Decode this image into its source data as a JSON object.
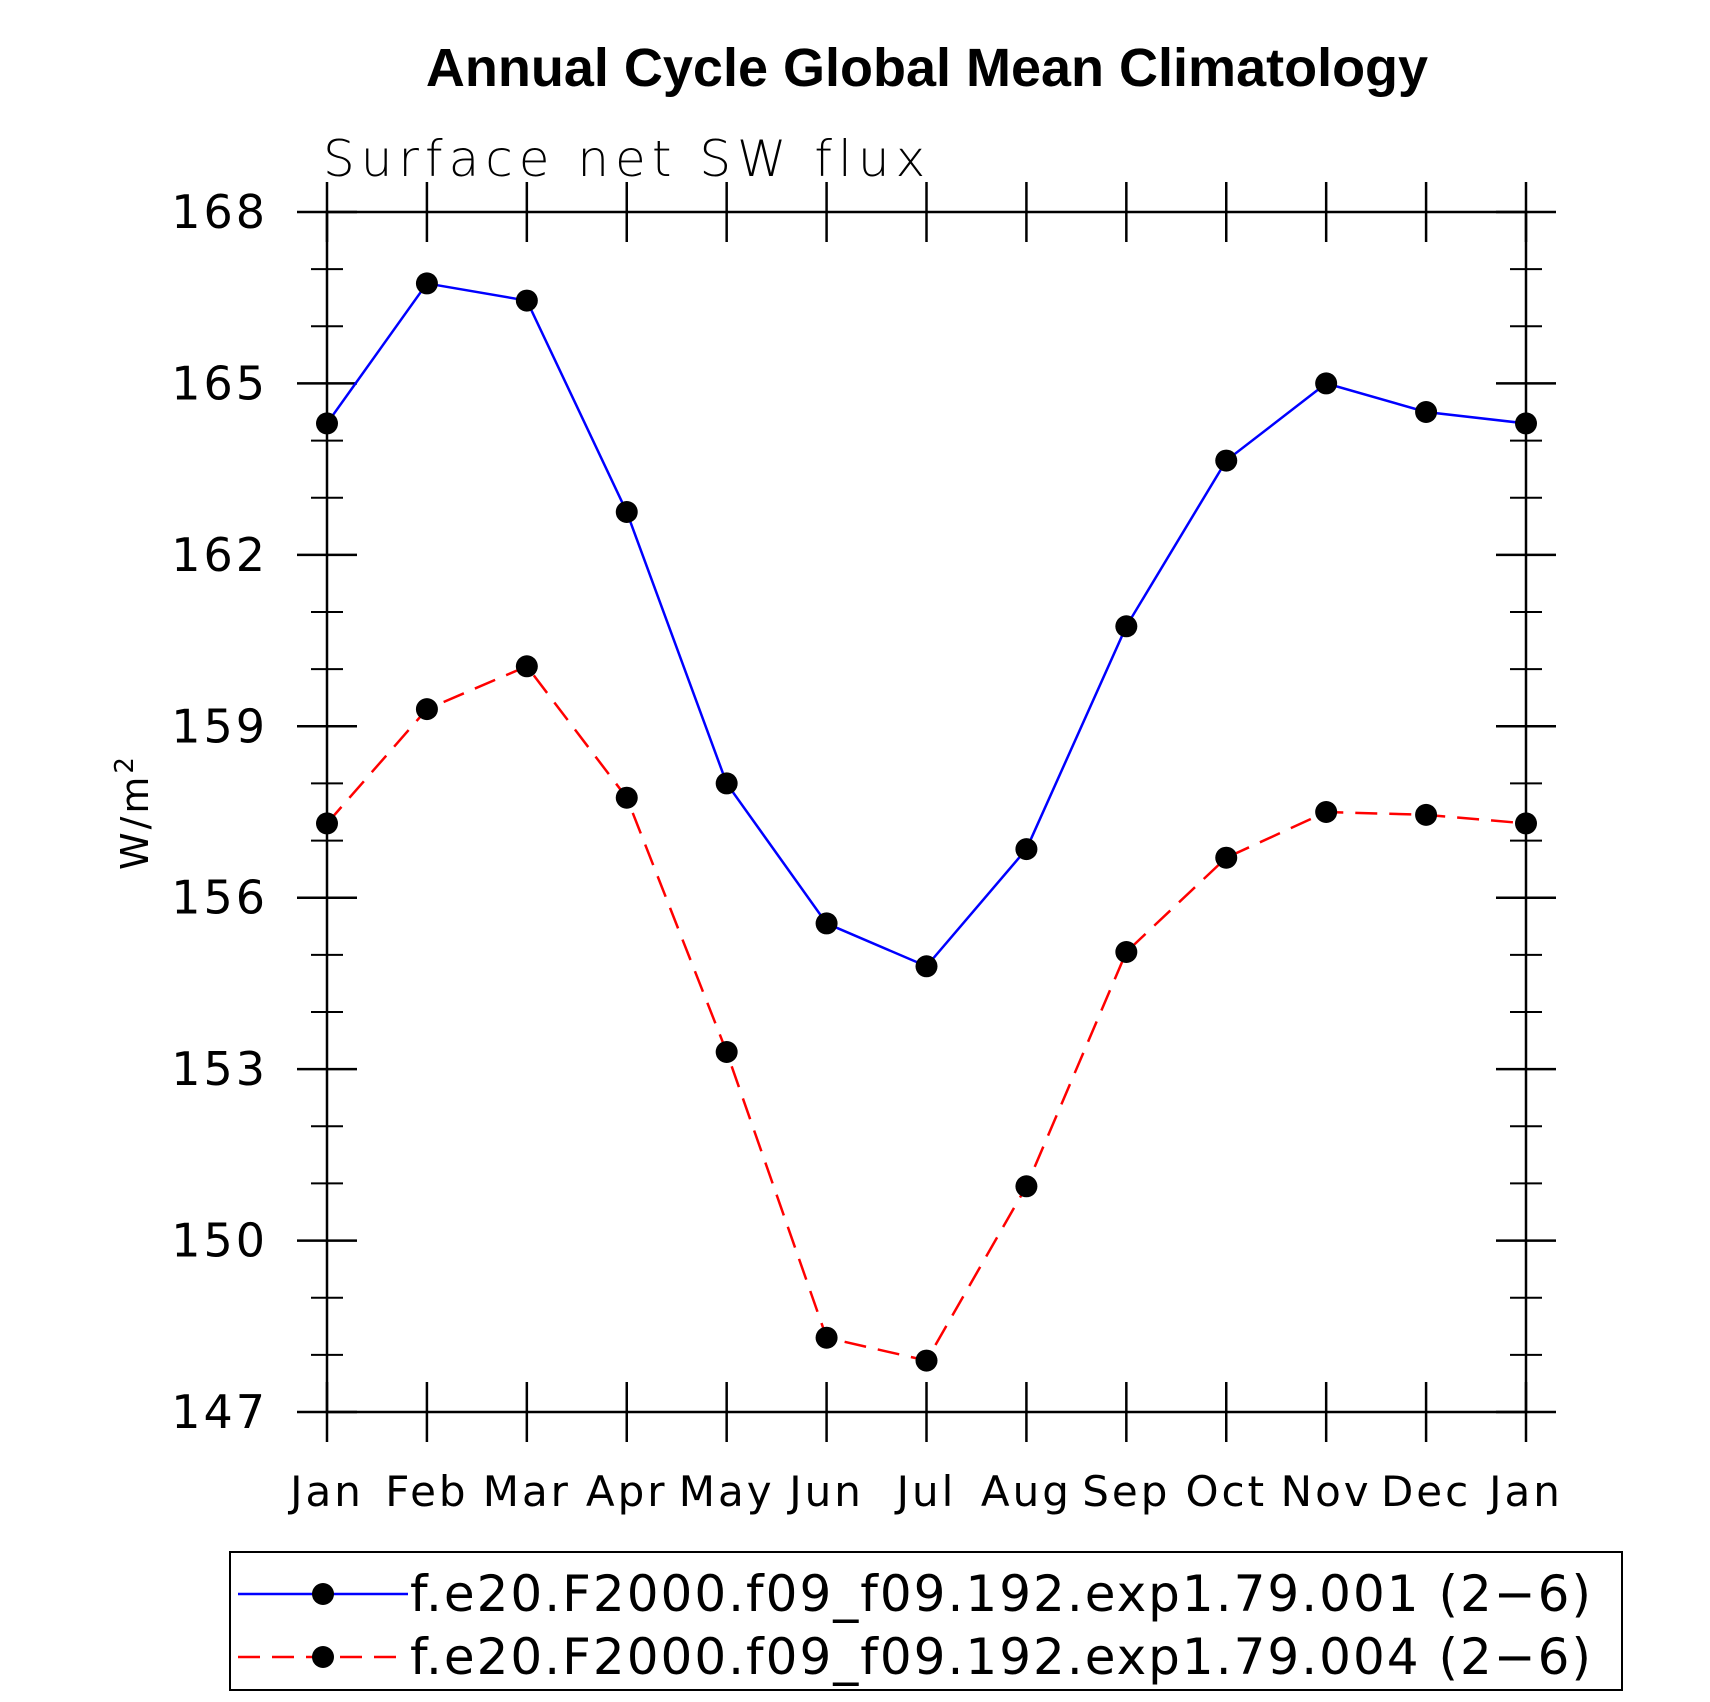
{
  "chart_data": {
    "type": "line",
    "title": "Annual Cycle Global Mean Climatology",
    "subtitle": "Surface net SW flux",
    "ylabel": "W/m",
    "ylabel_superscript": "2",
    "xlabel": "",
    "categories": [
      "Jan",
      "Feb",
      "Mar",
      "Apr",
      "May",
      "Jun",
      "Jul",
      "Aug",
      "Sep",
      "Oct",
      "Nov",
      "Dec",
      "Jan"
    ],
    "ylim": [
      147,
      168
    ],
    "yticks": [
      147,
      150,
      153,
      156,
      159,
      162,
      165,
      168
    ],
    "ytick_labels": [
      "147",
      "150",
      "153",
      "156",
      "159",
      "162",
      "165",
      "168"
    ],
    "y_minor_step": 1,
    "grid": false,
    "legend_position": "bottom",
    "series": [
      {
        "name": "f.e20.F2000.f09_f09.192.exp1.79.001 (2−6)",
        "color": "#0000ff",
        "line_style": "solid",
        "marker": "filled-circle",
        "values": [
          164.3,
          166.75,
          166.45,
          162.75,
          158.0,
          155.55,
          154.8,
          156.85,
          160.75,
          163.65,
          165.0,
          164.5,
          164.3
        ]
      },
      {
        "name": "f.e20.F2000.f09_f09.192.exp1.79.004 (2−6)",
        "color": "#ff0000",
        "line_style": "dashed",
        "marker": "filled-circle",
        "values": [
          157.3,
          159.3,
          160.05,
          157.75,
          153.3,
          148.3,
          147.9,
          150.95,
          155.05,
          156.7,
          157.5,
          157.45,
          157.3
        ]
      }
    ]
  }
}
